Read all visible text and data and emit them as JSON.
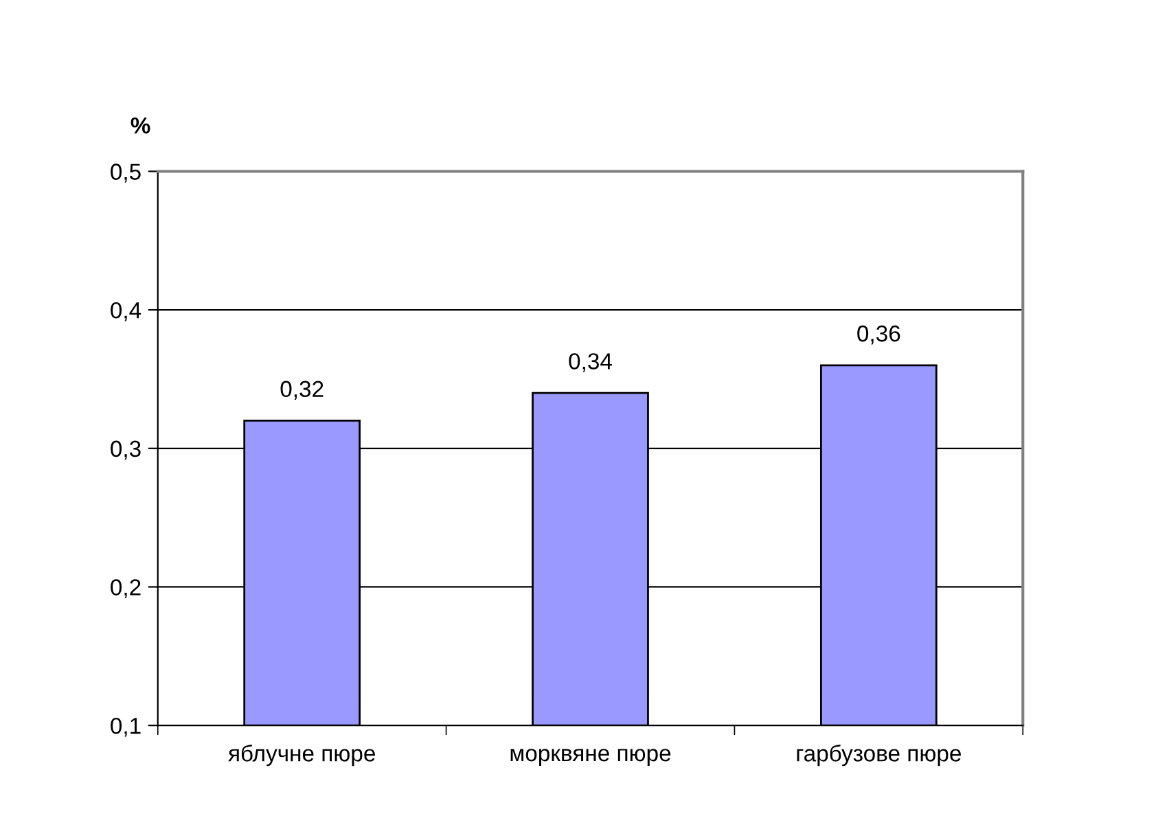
{
  "chart_data": {
    "type": "bar",
    "ylabel": "%",
    "categories": [
      "яблучне пюре",
      "морквяне пюре",
      "гарбузове пюре"
    ],
    "values": [
      0.32,
      0.34,
      0.36
    ],
    "color": "#9999ff",
    "value_labels": [
      "0,32",
      "0,34",
      "0,36"
    ],
    "ylim": [
      0.1,
      0.5
    ],
    "yticks": [
      {
        "value": 0.1,
        "label": "0,1"
      },
      {
        "value": 0.2,
        "label": "0,2"
      },
      {
        "value": 0.3,
        "label": "0,3"
      },
      {
        "value": 0.4,
        "label": "0,4"
      },
      {
        "value": 0.5,
        "label": "0,5"
      }
    ],
    "grid": "y",
    "legend": false
  }
}
